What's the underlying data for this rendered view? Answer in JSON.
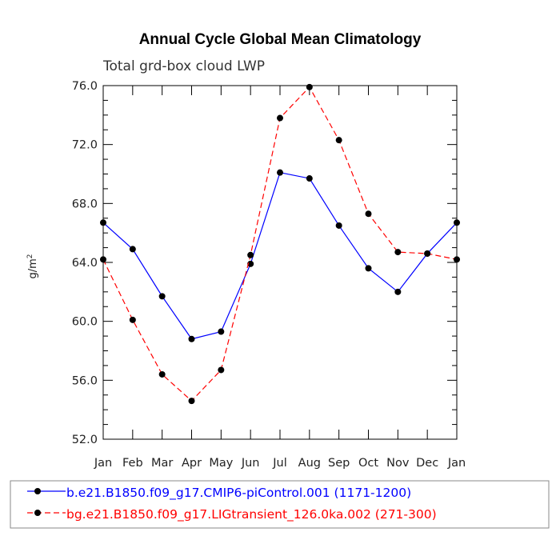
{
  "chart_data": {
    "type": "line",
    "title": "Annual Cycle Global Mean Climatology",
    "subtitle": "Total grd-box cloud LWP",
    "ylabel_base": "g/m",
    "ylabel_sup": "2",
    "categories": [
      "Jan",
      "Feb",
      "Mar",
      "Apr",
      "May",
      "Jun",
      "Jul",
      "Aug",
      "Sep",
      "Oct",
      "Nov",
      "Dec",
      "Jan"
    ],
    "ylim": [
      52.0,
      76.0
    ],
    "yticks": [
      "52.0",
      "56.0",
      "60.0",
      "64.0",
      "68.0",
      "72.0",
      "76.0"
    ],
    "grid": false,
    "legend_position": "bottom",
    "series": [
      {
        "name": "b.e21.B1850.f09_g17.CMIP6-piControl.001 (1171-1200)",
        "color": "#0000ff",
        "dash": "solid",
        "values": [
          66.7,
          64.9,
          61.7,
          58.8,
          59.3,
          63.9,
          70.1,
          69.7,
          66.5,
          63.6,
          62.0,
          64.6,
          66.7
        ]
      },
      {
        "name": "bg.e21.B1850.f09_g17.LIGtransient_126.0ka.002 (271-300)",
        "color": "#ff0000",
        "dash": "dashed",
        "values": [
          64.2,
          60.1,
          56.4,
          54.6,
          56.7,
          64.5,
          73.8,
          75.9,
          72.3,
          67.3,
          64.7,
          64.6,
          64.2
        ]
      }
    ]
  }
}
